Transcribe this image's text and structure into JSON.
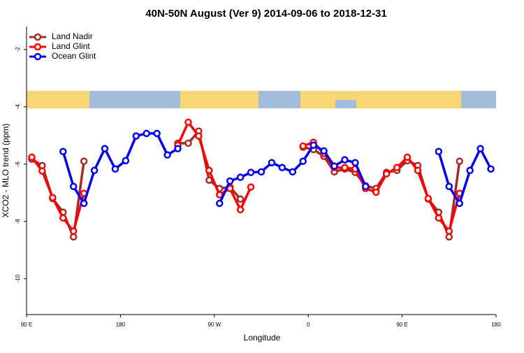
{
  "chart_data": {
    "type": "line",
    "title": "40N-50N August (Ver 9)   2014-09-06 to 2018-12-31",
    "x_label": "Longitude",
    "y_label": "XCO2 - MLO trend (ppm)",
    "xlim": [
      90,
      540
    ],
    "ylim": [
      -11.25,
      -1.2
    ],
    "xticks": [
      {
        "value": 90,
        "label": "90 E"
      },
      {
        "value": 180,
        "label": "180"
      },
      {
        "value": 270,
        "label": "90 W"
      },
      {
        "value": 360,
        "label": "0"
      },
      {
        "value": 450,
        "label": "90 E"
      },
      {
        "value": 540,
        "label": "180"
      }
    ],
    "yticks": [
      -10,
      -8,
      -6,
      -4,
      -2
    ],
    "legend": "top-left",
    "series": [
      {
        "name": "Land Nadir",
        "color": "#a52a2a",
        "x": [
          95,
          105,
          115,
          125,
          135,
          145,
          190,
          235,
          245,
          255,
          265,
          275,
          285,
          295,
          325,
          355,
          365,
          375,
          385,
          395,
          405,
          415,
          425,
          435,
          445,
          455,
          465,
          475,
          485,
          495,
          505
        ],
        "values": [
          -5.83,
          -6.05,
          -7.2,
          -7.68,
          -8.54,
          -5.9,
          null,
          -5.27,
          -5.27,
          -4.85,
          -6.56,
          -6.85,
          -6.8,
          -7.22,
          null,
          -5.41,
          -5.49,
          -5.73,
          -6.27,
          -6.17,
          -6.29,
          -6.76,
          -6.85,
          -6.29,
          -6.22,
          -5.88,
          -6.05,
          -7.22,
          -7.68,
          -8.54,
          -5.9
        ]
      },
      {
        "name": "Land Glint",
        "color": "#ff0000",
        "x": [
          95,
          105,
          115,
          125,
          135,
          145,
          190,
          235,
          245,
          255,
          265,
          275,
          285,
          295,
          305,
          330,
          355,
          365,
          375,
          385,
          395,
          405,
          415,
          425,
          435,
          445,
          455,
          465,
          475,
          485,
          495,
          505
        ],
        "values": [
          -5.76,
          -6.24,
          -7.17,
          -7.88,
          -8.34,
          -7.02,
          null,
          -5.34,
          -4.54,
          -5.02,
          -6.22,
          -7.07,
          -6.85,
          -7.59,
          -6.8,
          null,
          -5.37,
          -5.24,
          -5.63,
          -6.12,
          -6.12,
          -6.17,
          -6.85,
          -6.98,
          -6.34,
          -6.12,
          -5.76,
          -6.22,
          -7.2,
          -7.88,
          -8.34,
          -7.02
        ]
      },
      {
        "name": "Ocean Glint",
        "color": "#0000ee",
        "x": [
          125,
          135,
          145,
          155,
          165,
          175,
          185,
          195,
          205,
          215,
          225,
          235,
          255,
          275,
          285,
          295,
          305,
          315,
          325,
          335,
          345,
          355,
          365,
          375,
          385,
          395,
          405,
          415,
          450,
          485,
          495,
          505,
          515,
          525,
          535
        ],
        "values": [
          -5.56,
          -6.78,
          -7.37,
          -6.22,
          -5.46,
          -6.17,
          -5.88,
          -5.02,
          -4.93,
          -4.93,
          -5.68,
          -5.46,
          null,
          -7.37,
          -6.59,
          -6.46,
          -6.29,
          -6.27,
          -5.95,
          -6.12,
          -6.27,
          -5.9,
          -5.34,
          -5.54,
          -6.07,
          -5.85,
          -5.95,
          -6.78,
          null,
          -5.56,
          -6.78,
          -7.37,
          -6.22,
          -5.46,
          -6.17
        ]
      }
    ]
  }
}
